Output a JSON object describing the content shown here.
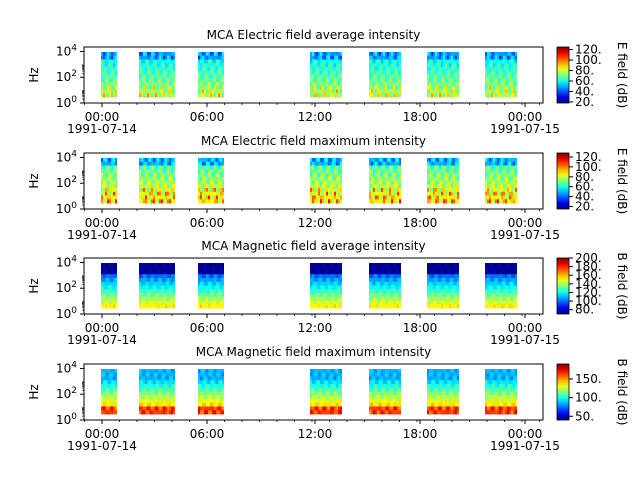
{
  "figure": {
    "date_start": "1991-07-14",
    "date_end": "1991-07-15",
    "x_tick_labels": [
      "00:00",
      "06:00",
      "12:00",
      "18:00",
      "00:00"
    ]
  },
  "chart_data": [
    {
      "type": "heatmap",
      "title": "MCA  Electric field average intensity",
      "ylabel": "Hz",
      "y_scale": "log",
      "y_tick_labels": [
        "10^0",
        "10^2",
        "10^4"
      ],
      "colorbar_label": "E field (dB)",
      "colorbar_range": [
        18,
        125
      ],
      "colorbar_ticks": [
        "20.",
        "40.",
        "60.",
        "80.",
        "100.",
        "120."
      ],
      "colorbar_ticks_values": [
        20,
        40,
        60,
        80,
        100,
        120
      ],
      "profile": "e_avg"
    },
    {
      "type": "heatmap",
      "title": "MCA  Electric field maximum intensity",
      "ylabel": "Hz",
      "y_scale": "log",
      "y_tick_labels": [
        "10^0",
        "10^2",
        "10^4"
      ],
      "colorbar_label": "E field (dB)",
      "colorbar_range": [
        15,
        128
      ],
      "colorbar_ticks": [
        "20.",
        "40.",
        "60.",
        "80.",
        "100.",
        "120."
      ],
      "colorbar_ticks_values": [
        20,
        40,
        60,
        80,
        100,
        120
      ],
      "profile": "e_max"
    },
    {
      "type": "heatmap",
      "title": "MCA  Magnetic field average intensity",
      "ylabel": "Hz",
      "y_scale": "log",
      "y_tick_labels": [
        "10^0",
        "10^2",
        "10^4"
      ],
      "colorbar_label": "B field (dB)",
      "colorbar_range": [
        70,
        200
      ],
      "colorbar_ticks": [
        "80.",
        "100.",
        "120.",
        "140.",
        "160.",
        "180.",
        "200."
      ],
      "colorbar_ticks_values": [
        80,
        100,
        120,
        140,
        160,
        180,
        200
      ],
      "profile": "b_avg"
    },
    {
      "type": "heatmap",
      "title": "MCA  Magnetic field maximum intensity",
      "ylabel": "Hz",
      "y_scale": "log",
      "y_tick_labels": [
        "10^0",
        "10^2",
        "10^4"
      ],
      "colorbar_label": "B field (dB)",
      "colorbar_range": [
        40,
        190
      ],
      "colorbar_ticks": [
        "50.",
        "100.",
        "150."
      ],
      "colorbar_ticks_values": [
        50,
        100,
        150
      ],
      "profile": "b_max"
    }
  ]
}
